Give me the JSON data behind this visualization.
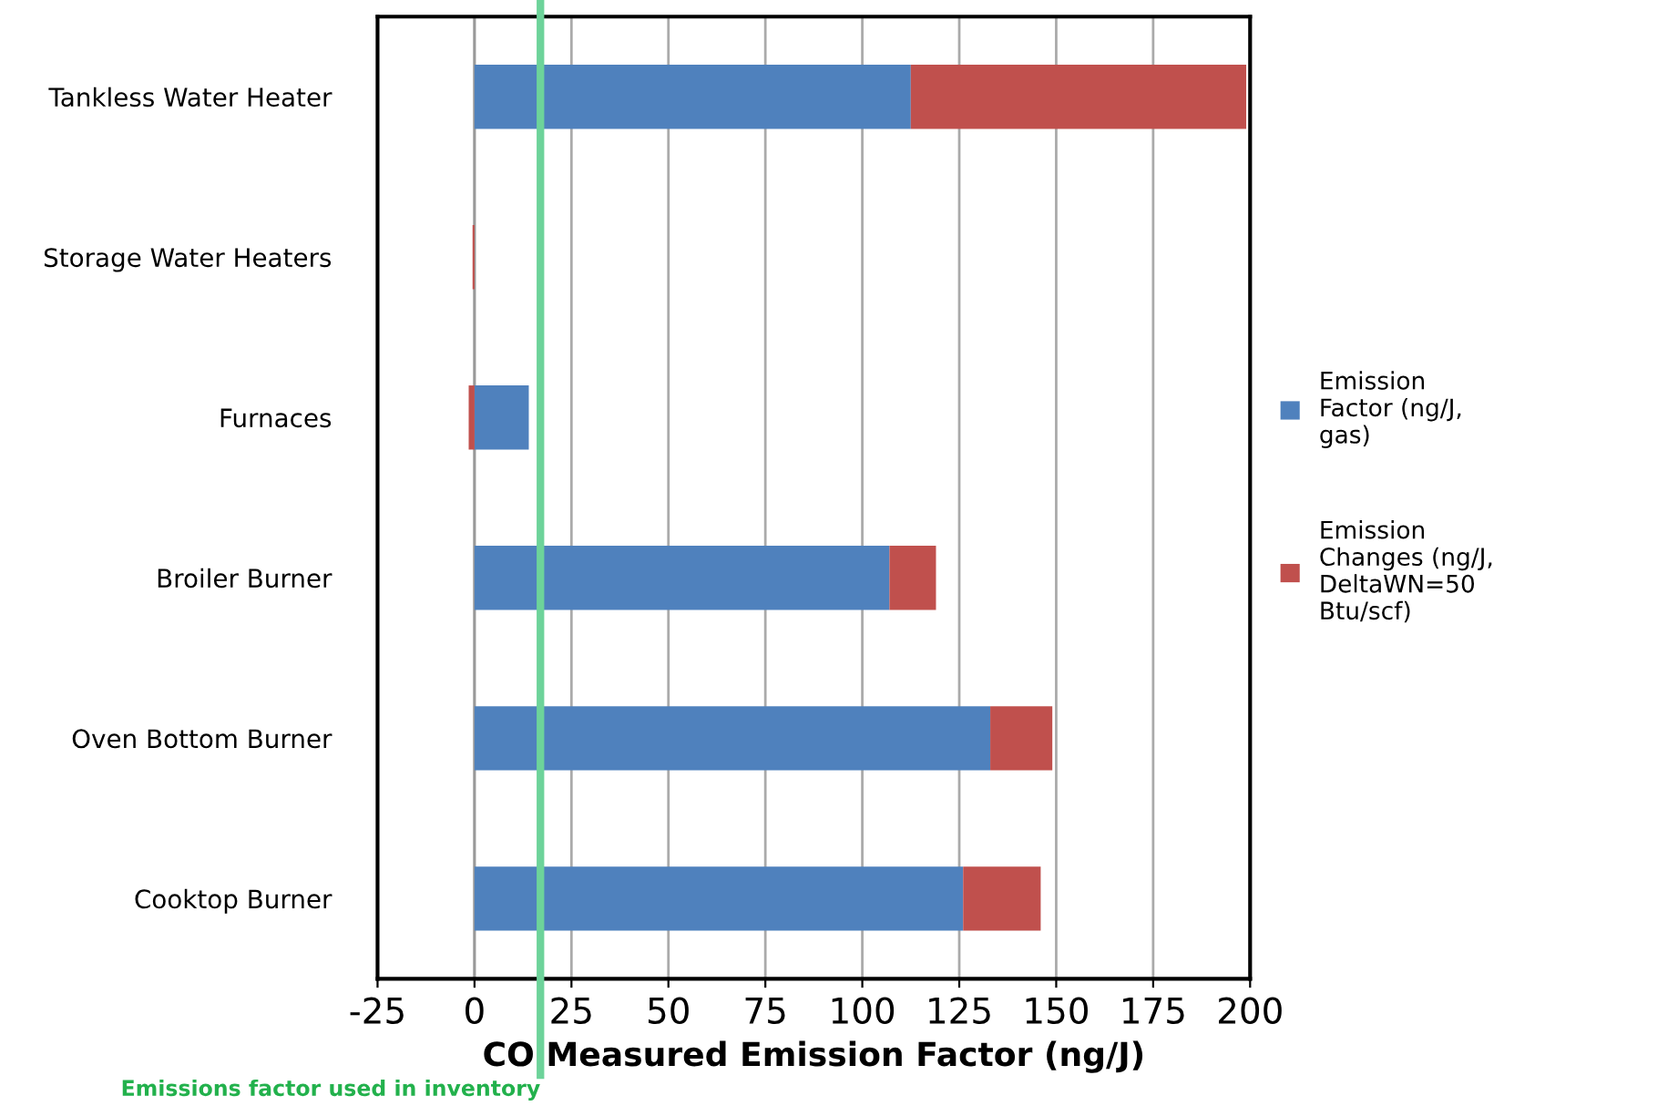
{
  "chart_data": {
    "type": "bar",
    "orientation": "horizontal",
    "stacked": true,
    "categories": [
      "Tankless Water Heater",
      "Storage Water Heaters",
      "Furnaces",
      "Broiler Burner",
      "Oven Bottom Burner",
      "Cooktop Burner"
    ],
    "series": [
      {
        "name": "Emission Factor (ng/J, gas)",
        "color": "#4f81bd",
        "values": [
          112.5,
          null,
          14,
          107,
          133,
          126
        ]
      },
      {
        "name": "Emission Changes (ng/J, DeltaWN=50 Btu/scf)",
        "color": "#c0504d",
        "values": [
          86.5,
          -0.5,
          -1.5,
          12,
          16,
          20
        ]
      }
    ],
    "xlabel": "CO Measured Emission Factor (ng/J)",
    "xlim": [
      -25,
      200
    ],
    "xticks": [
      -25,
      0,
      25,
      50,
      75,
      100,
      125,
      150,
      175,
      200
    ],
    "grid": "x",
    "legend": "right",
    "ref_lines": [
      {
        "axis": "x",
        "value": 17,
        "label": "Emissions factor used in inventory",
        "color": "#6dd39a"
      }
    ]
  }
}
